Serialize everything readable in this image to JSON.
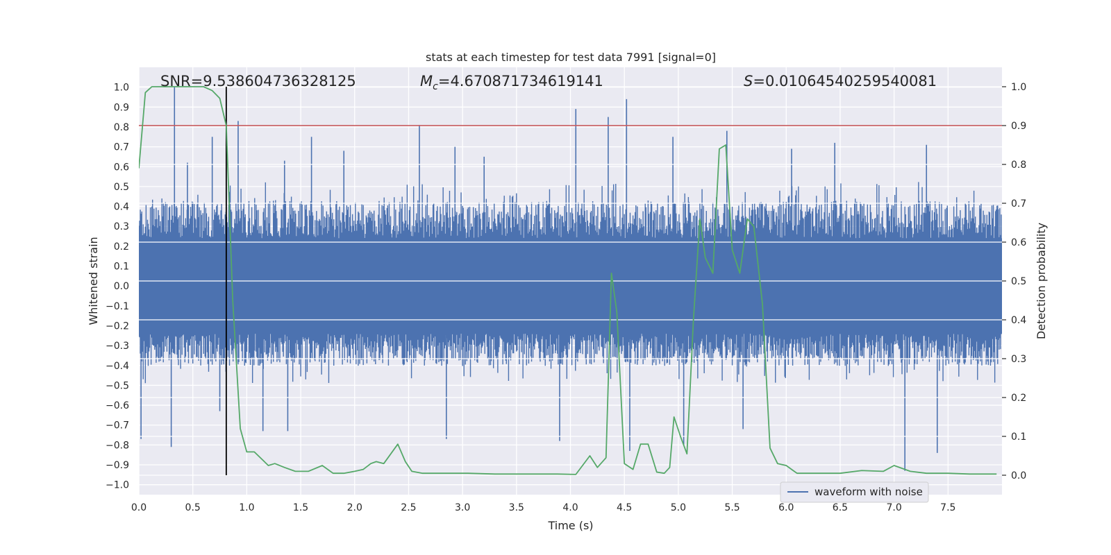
{
  "chart_data": {
    "type": "line",
    "title": "stats at each timestep for test data 7991 [signal=0]",
    "xlabel": "Time (s)",
    "ylabel": "Whitened strain",
    "y2label": "Detection probability",
    "xlim": [
      0.0,
      8.0
    ],
    "ylim": [
      -1.05,
      1.1
    ],
    "y2lim": [
      -0.05,
      1.05
    ],
    "xticks": [
      0.0,
      0.5,
      1.0,
      1.5,
      2.0,
      2.5,
      3.0,
      3.5,
      4.0,
      4.5,
      5.0,
      5.5,
      6.0,
      6.5,
      7.0,
      7.5
    ],
    "yticks": [
      1.0,
      0.9,
      0.8,
      0.7,
      0.6,
      0.5,
      0.4,
      0.3,
      0.2,
      0.1,
      0.0,
      -0.1,
      -0.2,
      -0.3,
      -0.4,
      -0.5,
      -0.6,
      -0.7,
      -0.8,
      -0.9,
      -1.0
    ],
    "y2ticks": [
      1.0,
      0.9,
      0.8,
      0.7,
      0.6,
      0.5,
      0.4,
      0.3,
      0.2,
      0.1,
      0.0
    ],
    "grid": true,
    "legend": {
      "location": "lower-right",
      "entries": [
        "waveform with noise"
      ]
    },
    "annotations": {
      "snr": {
        "label": "SNR",
        "value": "9.538604736328125"
      },
      "mc": {
        "label": "M",
        "sub": "c",
        "value": "4.670871734619141"
      },
      "s": {
        "label": "S",
        "value": "0.01064540259540081"
      }
    },
    "threshold": {
      "axis": "y2",
      "value": 0.9,
      "color": "#c44e52"
    },
    "marker_time": 0.81,
    "colors": {
      "waveform": "#4c72b0",
      "probability": "#55a868",
      "threshold": "#c44e52",
      "marker": "#000000",
      "background": "#eaeaf2"
    },
    "waveform_noise": {
      "name": "waveform with noise",
      "samples": 1200,
      "seed": 7991,
      "core_amplitude": 0.24,
      "envelope": [
        0.45,
        -0.42
      ],
      "spikes": [
        {
          "t": 0.02,
          "v": -0.77
        },
        {
          "t": 0.33,
          "v": 1.0
        },
        {
          "t": 0.3,
          "v": -0.81
        },
        {
          "t": 0.45,
          "v": 0.62
        },
        {
          "t": 0.68,
          "v": 0.75
        },
        {
          "t": 0.92,
          "v": 0.83
        },
        {
          "t": 1.15,
          "v": -0.73
        },
        {
          "t": 1.35,
          "v": 0.63
        },
        {
          "t": 1.38,
          "v": -0.73
        },
        {
          "t": 1.6,
          "v": 0.75
        },
        {
          "t": 1.9,
          "v": 0.68
        },
        {
          "t": 2.6,
          "v": 0.81
        },
        {
          "t": 2.85,
          "v": -0.77
        },
        {
          "t": 2.93,
          "v": 0.7
        },
        {
          "t": 3.2,
          "v": 0.65
        },
        {
          "t": 3.9,
          "v": -0.78
        },
        {
          "t": 4.05,
          "v": 0.89
        },
        {
          "t": 4.35,
          "v": 0.85
        },
        {
          "t": 4.52,
          "v": 0.94
        },
        {
          "t": 4.55,
          "v": -0.83
        },
        {
          "t": 4.95,
          "v": 0.75
        },
        {
          "t": 5.45,
          "v": 0.78
        },
        {
          "t": 5.6,
          "v": -0.72
        },
        {
          "t": 6.45,
          "v": 0.72
        },
        {
          "t": 7.1,
          "v": -0.93
        },
        {
          "t": 7.4,
          "v": -0.84
        },
        {
          "t": 7.3,
          "v": 0.71
        },
        {
          "t": 6.05,
          "v": 0.69
        },
        {
          "t": 5.05,
          "v": -0.8
        },
        {
          "t": 0.75,
          "v": -0.63
        }
      ]
    },
    "probability": {
      "name": "Detection probability",
      "t": [
        0.0,
        0.06,
        0.12,
        0.2,
        0.4,
        0.6,
        0.68,
        0.75,
        0.81,
        0.87,
        0.94,
        1.0,
        1.07,
        1.2,
        1.26,
        1.35,
        1.45,
        1.57,
        1.7,
        1.8,
        1.9,
        2.0,
        2.08,
        2.15,
        2.2,
        2.27,
        2.4,
        2.47,
        2.53,
        2.63,
        2.75,
        2.85,
        2.95,
        3.05,
        3.3,
        3.5,
        3.75,
        3.88,
        4.05,
        4.18,
        4.25,
        4.33,
        4.38,
        4.43,
        4.5,
        4.58,
        4.65,
        4.72,
        4.8,
        4.87,
        4.92,
        4.96,
        5.02,
        5.08,
        5.14,
        5.2,
        5.25,
        5.32,
        5.38,
        5.44,
        5.5,
        5.57,
        5.64,
        5.7,
        5.78,
        5.85,
        5.92,
        6.0,
        6.1,
        6.5,
        6.7,
        6.9,
        7.0,
        7.15,
        7.3,
        7.5,
        7.7,
        7.95
      ],
      "values": [
        0.79,
        0.985,
        1.0,
        1.0,
        1.0,
        1.0,
        0.99,
        0.97,
        0.9,
        0.45,
        0.12,
        0.06,
        0.06,
        0.025,
        0.03,
        0.02,
        0.01,
        0.01,
        0.025,
        0.005,
        0.005,
        0.01,
        0.015,
        0.03,
        0.035,
        0.03,
        0.08,
        0.035,
        0.01,
        0.005,
        0.005,
        0.005,
        0.005,
        0.005,
        0.003,
        0.003,
        0.003,
        0.003,
        0.002,
        0.05,
        0.02,
        0.045,
        0.52,
        0.42,
        0.03,
        0.015,
        0.08,
        0.08,
        0.008,
        0.005,
        0.02,
        0.15,
        0.1,
        0.055,
        0.4,
        0.66,
        0.56,
        0.52,
        0.84,
        0.85,
        0.58,
        0.52,
        0.66,
        0.64,
        0.44,
        0.07,
        0.03,
        0.025,
        0.005,
        0.005,
        0.012,
        0.01,
        0.025,
        0.01,
        0.005,
        0.005,
        0.003,
        0.003
      ]
    }
  }
}
